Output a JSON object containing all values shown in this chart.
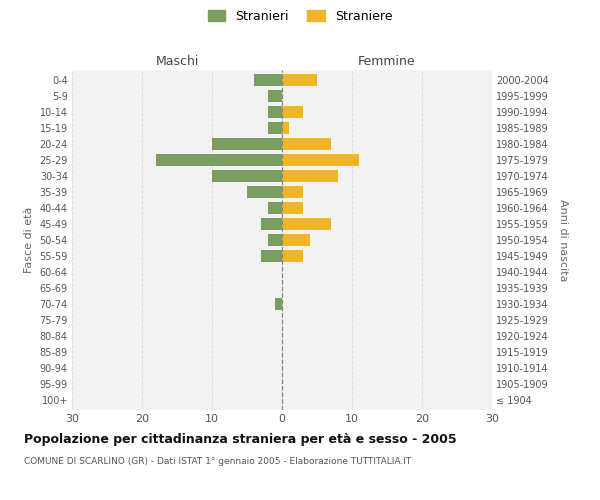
{
  "age_groups": [
    "100+",
    "95-99",
    "90-94",
    "85-89",
    "80-84",
    "75-79",
    "70-74",
    "65-69",
    "60-64",
    "55-59",
    "50-54",
    "45-49",
    "40-44",
    "35-39",
    "30-34",
    "25-29",
    "20-24",
    "15-19",
    "10-14",
    "5-9",
    "0-4"
  ],
  "birth_years": [
    "≤ 1904",
    "1905-1909",
    "1910-1914",
    "1915-1919",
    "1920-1924",
    "1925-1929",
    "1930-1934",
    "1935-1939",
    "1940-1944",
    "1945-1949",
    "1950-1954",
    "1955-1959",
    "1960-1964",
    "1965-1969",
    "1970-1974",
    "1975-1979",
    "1980-1984",
    "1985-1989",
    "1990-1994",
    "1995-1999",
    "2000-2004"
  ],
  "maschi": [
    0,
    0,
    0,
    0,
    0,
    0,
    1,
    0,
    0,
    3,
    2,
    3,
    2,
    5,
    10,
    18,
    10,
    2,
    2,
    2,
    4
  ],
  "femmine": [
    0,
    0,
    0,
    0,
    0,
    0,
    0,
    0,
    0,
    3,
    4,
    7,
    3,
    3,
    8,
    11,
    7,
    1,
    3,
    0,
    5
  ],
  "maschi_color": "#7a9e5f",
  "femmine_color": "#f0b429",
  "title": "Popolazione per cittadinanza straniera per età e sesso - 2005",
  "subtitle": "COMUNE DI SCARLINO (GR) - Dati ISTAT 1° gennaio 2005 - Elaborazione TUTTITALIA.IT",
  "legend_maschi": "Stranieri",
  "legend_femmine": "Straniere",
  "xlabel_left": "Maschi",
  "xlabel_right": "Femmine",
  "ylabel_left": "Fasce di età",
  "ylabel_right": "Anni di nascita",
  "xlim": 30,
  "background_color": "#ffffff",
  "plot_bg_color": "#f2f2f2",
  "grid_color": "#dddddd"
}
